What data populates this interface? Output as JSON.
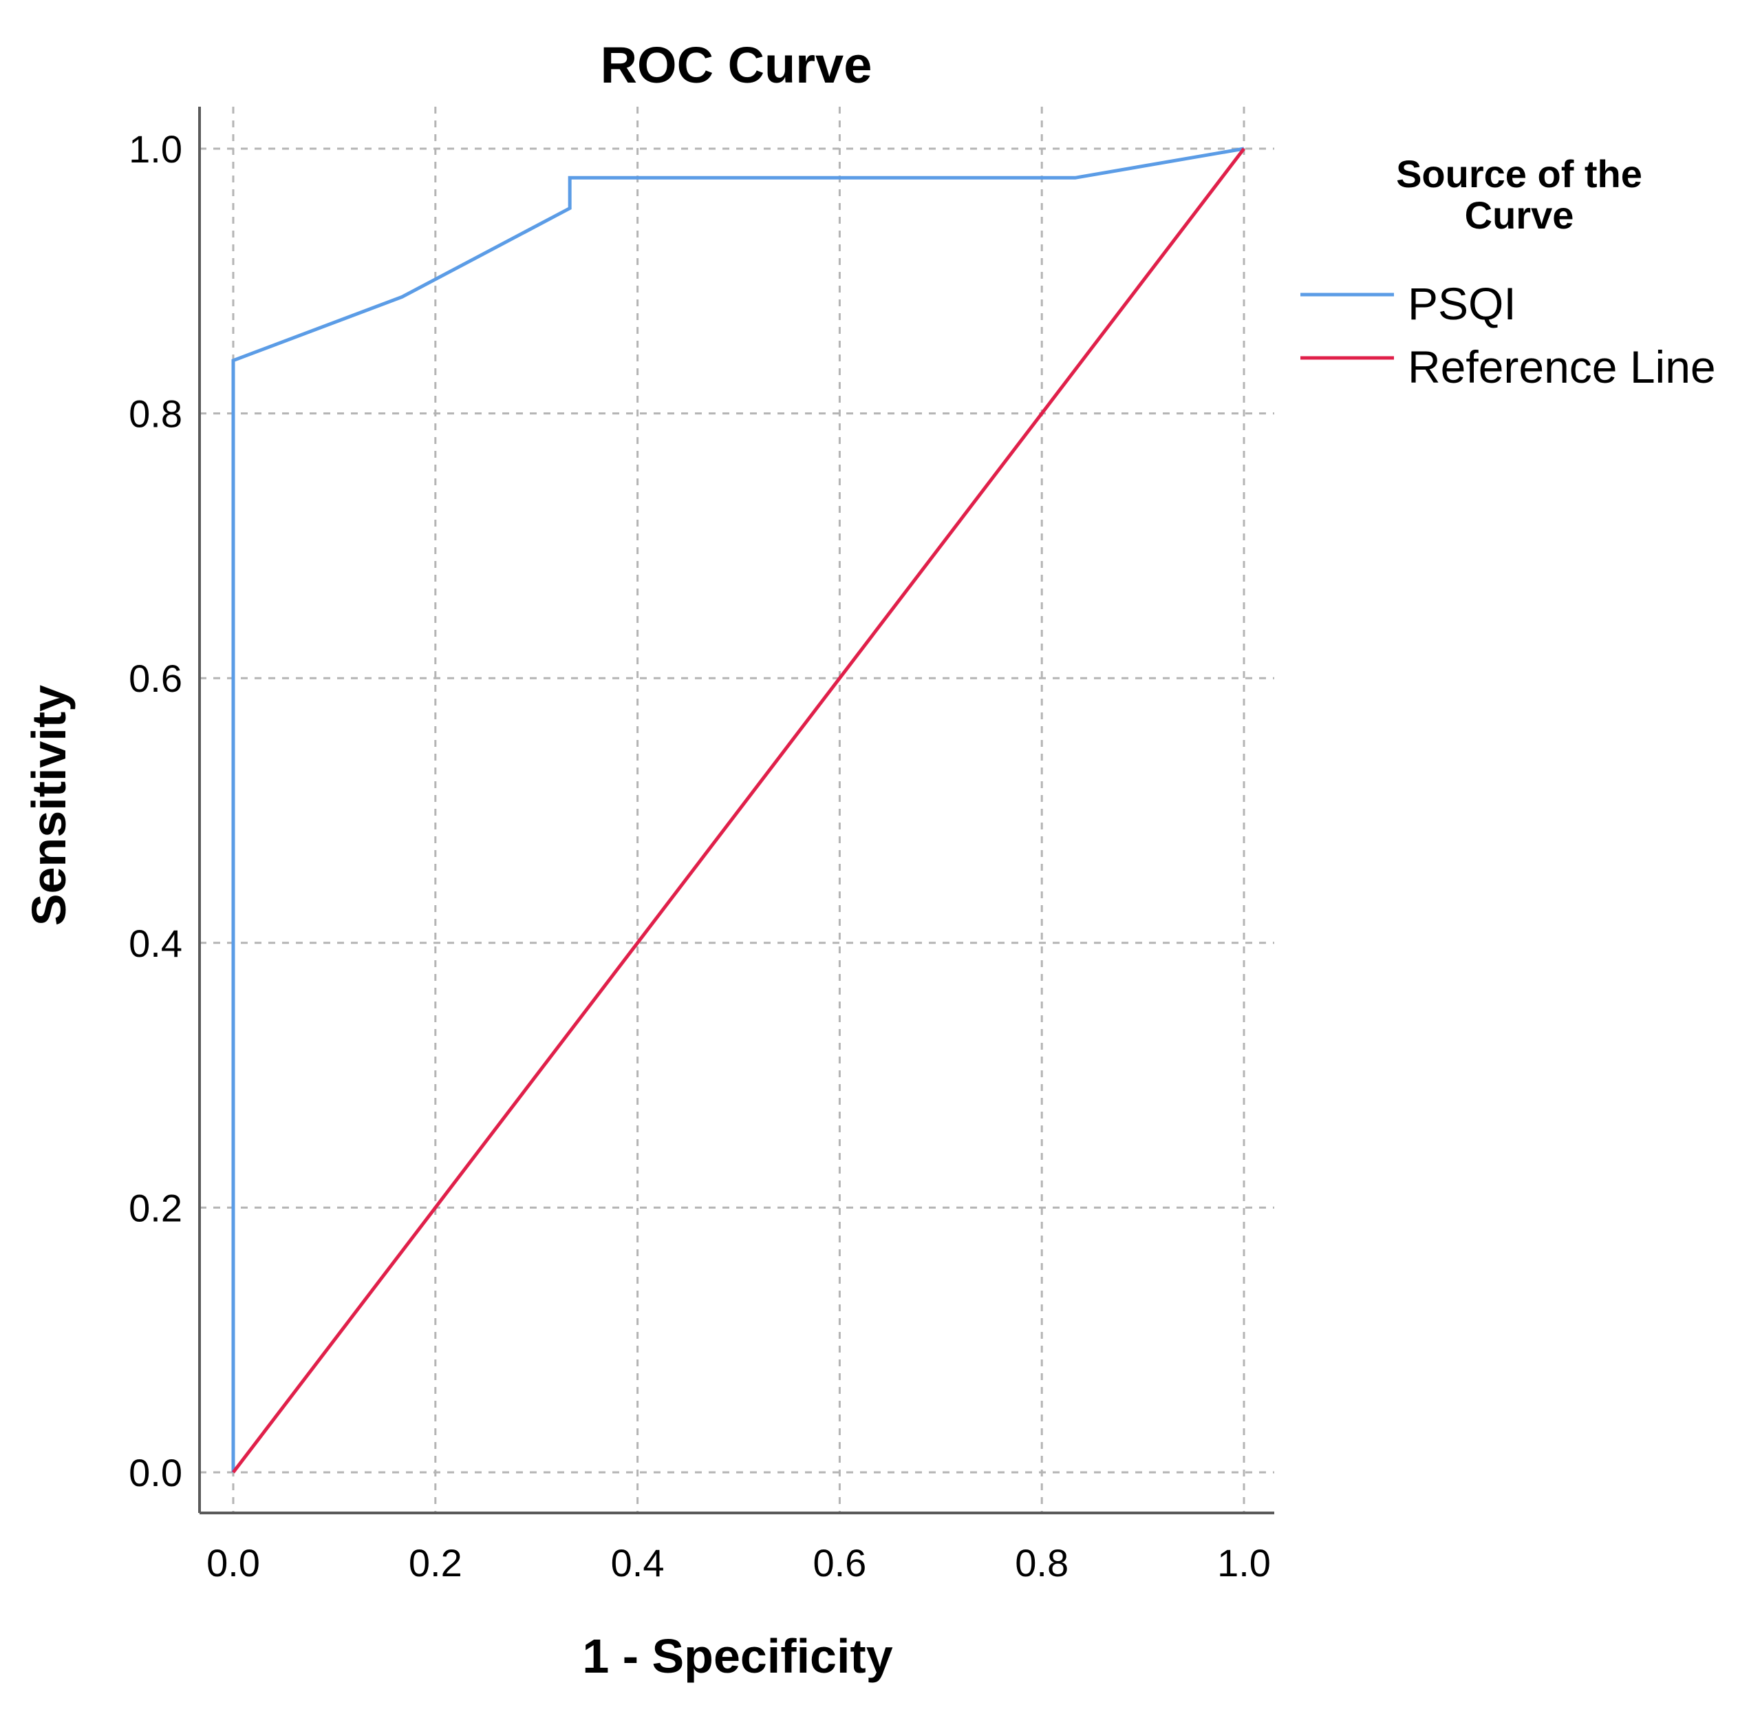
{
  "chart_data": {
    "type": "line",
    "title": "ROC Curve",
    "xlabel": "1 - Specificity",
    "ylabel": "Sensitivity",
    "xlim": [
      0,
      1
    ],
    "ylim": [
      0,
      1
    ],
    "xticks": [
      "0.0",
      "0.2",
      "0.4",
      "0.6",
      "0.8",
      "1.0"
    ],
    "yticks": [
      "0.0",
      "0.2",
      "0.4",
      "0.6",
      "0.8",
      "1.0"
    ],
    "grid": true,
    "legend": {
      "title": [
        "Source of the",
        "Curve"
      ],
      "placement": "right"
    },
    "series": [
      {
        "name": "PSQI",
        "color": "#5b9ce6",
        "x": [
          0.0,
          0.0,
          0.167,
          0.333,
          0.333,
          0.5,
          0.667,
          0.833,
          1.0
        ],
        "y": [
          0.0,
          0.84,
          0.888,
          0.955,
          0.978,
          0.978,
          0.978,
          0.978,
          1.0
        ]
      },
      {
        "name": "Reference Line",
        "color": "#e0204a",
        "x": [
          0.0,
          1.0
        ],
        "y": [
          0.0,
          1.0
        ]
      }
    ]
  }
}
